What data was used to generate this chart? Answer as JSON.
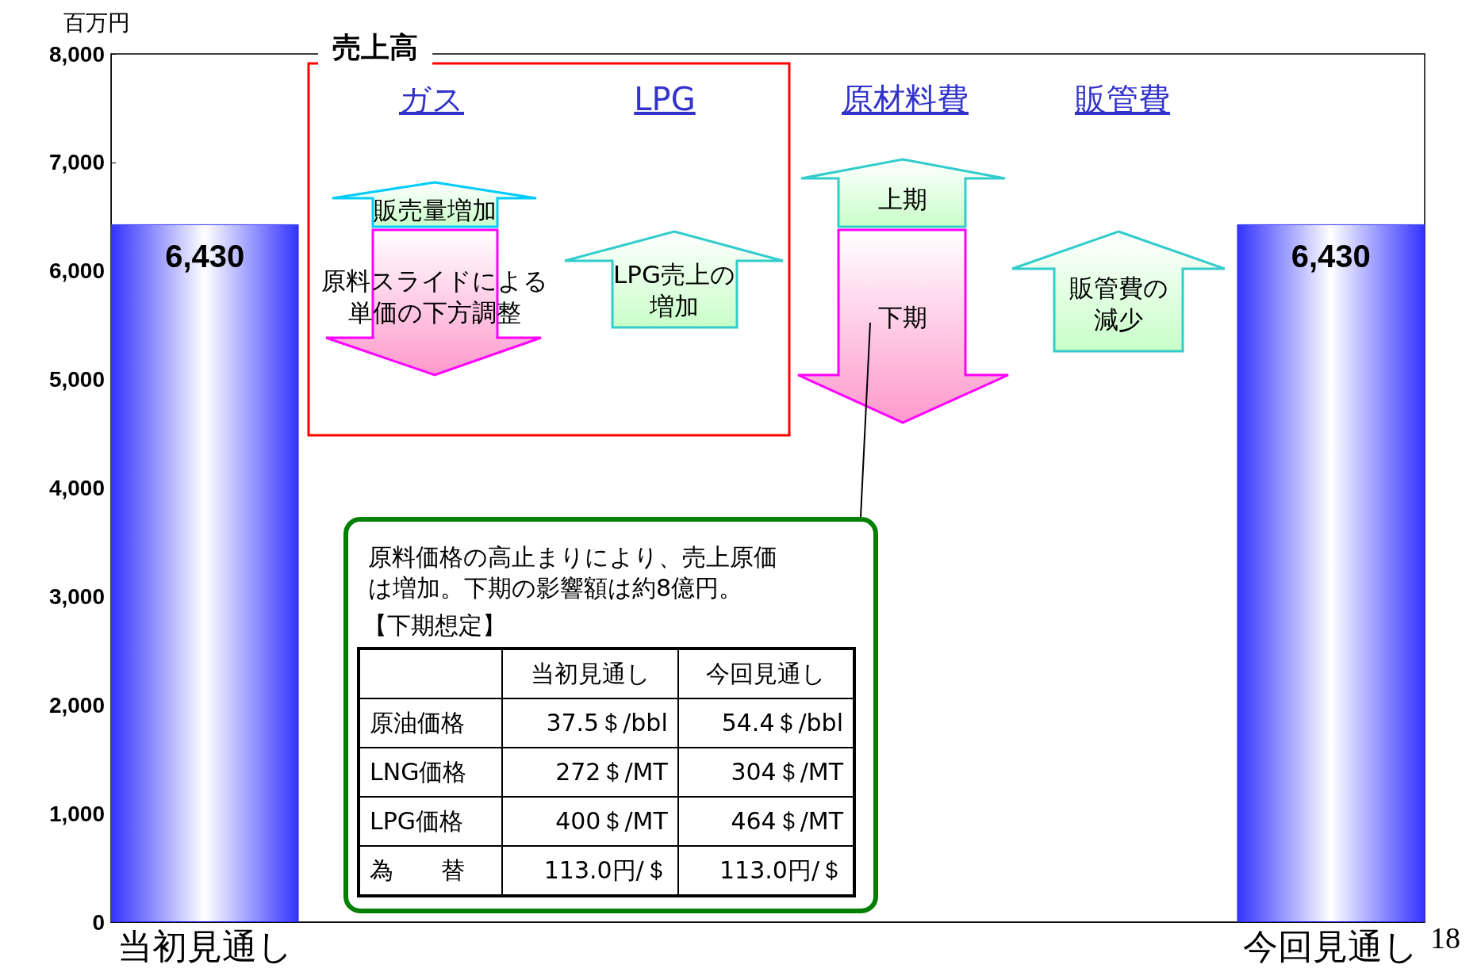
{
  "chart_data": {
    "type": "bar",
    "categories": [
      "当初見通し",
      null,
      null,
      null,
      null,
      null,
      "今回見通し"
    ],
    "values": [
      6430,
      null,
      null,
      null,
      null,
      null,
      6430
    ],
    "color": "#3333ff",
    "value_labels": [
      "6,430",
      null,
      null,
      null,
      null,
      null,
      "6,430"
    ],
    "ylabel": "百万円",
    "ylim": [
      0,
      8000
    ],
    "yticks": [
      0,
      {
        "value": 1000,
        "label": "1,000"
      },
      {
        "value": 2000,
        "label": "2,000"
      },
      {
        "value": 3000,
        "label": "3,000"
      },
      {
        "value": 4000,
        "label": "4,000"
      },
      {
        "value": 5000,
        "label": "5,000"
      },
      {
        "value": 6000,
        "label": "6,000"
      },
      {
        "value": 7000,
        "label": "7,000"
      },
      {
        "value": 8000,
        "label": "8,000"
      }
    ],
    "grid": false,
    "annotations": [
      "売上高",
      "ガス",
      "LPG",
      "原材料費",
      "販管費",
      "販売量増加",
      "原料スライドによる単価の下方調整",
      "LPG売上の増加",
      "上期",
      "下期",
      "販管費の減少",
      "原料価格の高止まりにより、売上原価は増加。下期の影響額は約8億円。",
      "【下期想定】",
      "当初見通し",
      "今回見通し",
      "原油価格",
      "37.5＄/bbl",
      "54.4＄/bbl",
      "LNG価格",
      "272＄/MT",
      "304＄/MT",
      "LPG価格",
      "400＄/MT",
      "464＄/MT",
      "為　　替",
      "113.0円/＄",
      "113.0円/＄",
      "18"
    ]
  }
}
